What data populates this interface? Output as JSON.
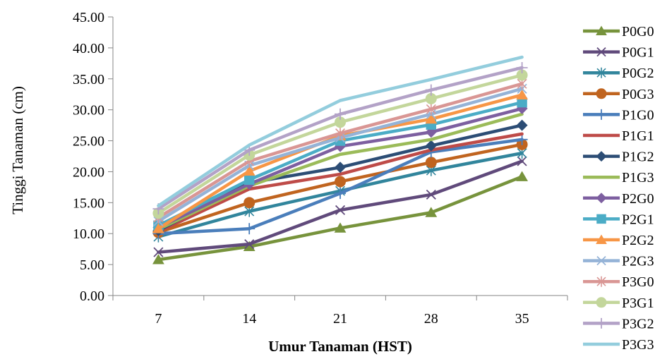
{
  "chart_data": {
    "type": "line",
    "title": "",
    "xlabel": "Umur Tanaman (HST)",
    "ylabel": "Tinggi Tanaman (cm)",
    "categories": [
      "7",
      "14",
      "21",
      "28",
      "35"
    ],
    "ylim": [
      0,
      45
    ],
    "ytick_step": 5,
    "ytick_decimals": 2,
    "grid": false,
    "legend": "right",
    "series": [
      {
        "name": "P0G0",
        "color": "#77933C",
        "marker": "triangle",
        "values": [
          5.8,
          7.9,
          10.9,
          13.4,
          19.2
        ]
      },
      {
        "name": "P0G1",
        "color": "#604A7B",
        "marker": "x",
        "values": [
          7.0,
          8.3,
          13.8,
          16.3,
          21.7
        ]
      },
      {
        "name": "P0G2",
        "color": "#31859C",
        "marker": "star",
        "values": [
          9.5,
          13.6,
          16.9,
          20.2,
          23.0
        ]
      },
      {
        "name": "P0G3",
        "color": "#C0641F",
        "marker": "circle",
        "values": [
          10.2,
          15.0,
          18.4,
          21.5,
          24.4
        ]
      },
      {
        "name": "P1G0",
        "color": "#4A7EBB",
        "marker": "plus",
        "values": [
          10.0,
          10.8,
          16.5,
          23.2,
          25.2
        ]
      },
      {
        "name": "P1G1",
        "color": "#BE4B48",
        "marker": "none",
        "values": [
          10.3,
          17.2,
          19.6,
          23.5,
          26.1
        ]
      },
      {
        "name": "P1G2",
        "color": "#2C4D75",
        "marker": "diamond",
        "values": [
          10.5,
          18.2,
          20.7,
          24.2,
          27.5
        ]
      },
      {
        "name": "P1G3",
        "color": "#9BBB59",
        "marker": "none",
        "values": [
          10.7,
          17.7,
          22.8,
          25.2,
          29.3
        ]
      },
      {
        "name": "P2G0",
        "color": "#7D5FA0",
        "marker": "diamond",
        "values": [
          11.0,
          18.0,
          24.1,
          26.4,
          30.2
        ]
      },
      {
        "name": "P2G1",
        "color": "#4BACC6",
        "marker": "square",
        "values": [
          11.3,
          18.7,
          25.0,
          27.6,
          31.2
        ]
      },
      {
        "name": "P2G2",
        "color": "#F79646",
        "marker": "triangle",
        "values": [
          10.8,
          20.1,
          25.8,
          28.5,
          32.4
        ]
      },
      {
        "name": "P2G3",
        "color": "#95B3D7",
        "marker": "x",
        "values": [
          12.0,
          21.0,
          25.5,
          29.3,
          33.4
        ]
      },
      {
        "name": "P3G0",
        "color": "#D99694",
        "marker": "star",
        "values": [
          12.6,
          21.7,
          26.2,
          30.1,
          34.2
        ]
      },
      {
        "name": "P3G1",
        "color": "#C3D69B",
        "marker": "circle",
        "values": [
          13.3,
          22.7,
          28.0,
          31.8,
          35.6
        ]
      },
      {
        "name": "P3G2",
        "color": "#B3A2C7",
        "marker": "plus",
        "values": [
          14.0,
          23.5,
          29.3,
          33.2,
          36.8
        ]
      },
      {
        "name": "P3G3",
        "color": "#93CDDD",
        "marker": "none",
        "values": [
          14.5,
          24.3,
          31.5,
          34.9,
          38.5
        ]
      }
    ]
  }
}
